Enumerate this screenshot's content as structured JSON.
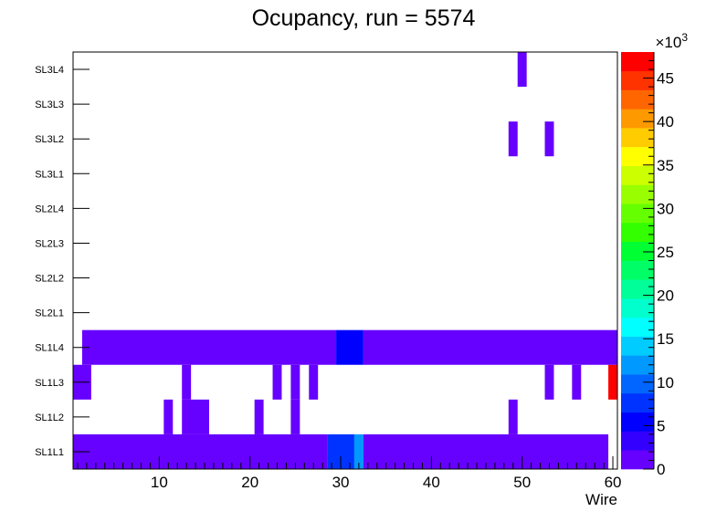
{
  "chart_data": {
    "type": "heatmap",
    "title": "Ocupancy, run = 5574",
    "xlabel": "Wire",
    "ylabel": "",
    "xlim": [
      0.5,
      60.5
    ],
    "x_ticks": [
      10,
      20,
      30,
      40,
      50,
      60
    ],
    "x_tick_labels": [
      "10",
      "20",
      "30",
      "40",
      "50",
      "60"
    ],
    "rows": [
      "SL1L1",
      "SL1L2",
      "SL1L3",
      "SL1L4",
      "SL2L1",
      "SL2L2",
      "SL2L3",
      "SL2L4",
      "SL3L1",
      "SL3L2",
      "SL3L3",
      "SL3L4"
    ],
    "zlim": [
      0,
      48000
    ],
    "z_exponent_label": "×10",
    "z_exponent_power": "3",
    "z_ticks": [
      0,
      5,
      10,
      15,
      20,
      25,
      30,
      35,
      40,
      45
    ],
    "z_tick_labels": [
      "0",
      "5",
      "10",
      "15",
      "20",
      "25",
      "30",
      "35",
      "40",
      "45"
    ],
    "palette": [
      "#6600ff",
      "#3300ff",
      "#0000ff",
      "#0033ff",
      "#0066ff",
      "#0099ff",
      "#00ccff",
      "#00ffff",
      "#00ffcc",
      "#00ff99",
      "#00ff66",
      "#00ff33",
      "#33ff00",
      "#66ff00",
      "#99ff00",
      "#ccff00",
      "#ffff00",
      "#ffcc00",
      "#ff9900",
      "#ff6600",
      "#ff3300",
      "#ff0000"
    ],
    "cells": [
      {
        "row": "SL1L1",
        "from": 1,
        "to": 28,
        "value": 1000
      },
      {
        "row": "SL1L1",
        "from": 29,
        "to": 31,
        "value": 8000
      },
      {
        "row": "SL1L1",
        "from": 32,
        "to": 32,
        "value": 11000
      },
      {
        "row": "SL1L1",
        "from": 33,
        "to": 59,
        "value": 1000
      },
      {
        "row": "SL1L2",
        "from": 11,
        "to": 11,
        "value": 1000
      },
      {
        "row": "SL1L2",
        "from": 13,
        "to": 15,
        "value": 1000
      },
      {
        "row": "SL1L2",
        "from": 21,
        "to": 21,
        "value": 1000
      },
      {
        "row": "SL1L2",
        "from": 25,
        "to": 25,
        "value": 1000
      },
      {
        "row": "SL1L2",
        "from": 49,
        "to": 49,
        "value": 1000
      },
      {
        "row": "SL1L3",
        "from": 1,
        "to": 2,
        "value": 1000
      },
      {
        "row": "SL1L3",
        "from": 13,
        "to": 13,
        "value": 1000
      },
      {
        "row": "SL1L3",
        "from": 23,
        "to": 23,
        "value": 1000
      },
      {
        "row": "SL1L3",
        "from": 25,
        "to": 25,
        "value": 1000
      },
      {
        "row": "SL1L3",
        "from": 27,
        "to": 27,
        "value": 1000
      },
      {
        "row": "SL1L3",
        "from": 53,
        "to": 53,
        "value": 1000
      },
      {
        "row": "SL1L3",
        "from": 56,
        "to": 56,
        "value": 1000
      },
      {
        "row": "SL1L3",
        "from": 60,
        "to": 60,
        "value": 47000
      },
      {
        "row": "SL1L4",
        "from": 2,
        "to": 29,
        "value": 1000
      },
      {
        "row": "SL1L4",
        "from": 30,
        "to": 32,
        "value": 5000
      },
      {
        "row": "SL1L4",
        "from": 33,
        "to": 60,
        "value": 1000
      },
      {
        "row": "SL3L2",
        "from": 49,
        "to": 49,
        "value": 1000
      },
      {
        "row": "SL3L2",
        "from": 53,
        "to": 53,
        "value": 1000
      },
      {
        "row": "SL3L4",
        "from": 50,
        "to": 50,
        "value": 1000
      }
    ]
  }
}
